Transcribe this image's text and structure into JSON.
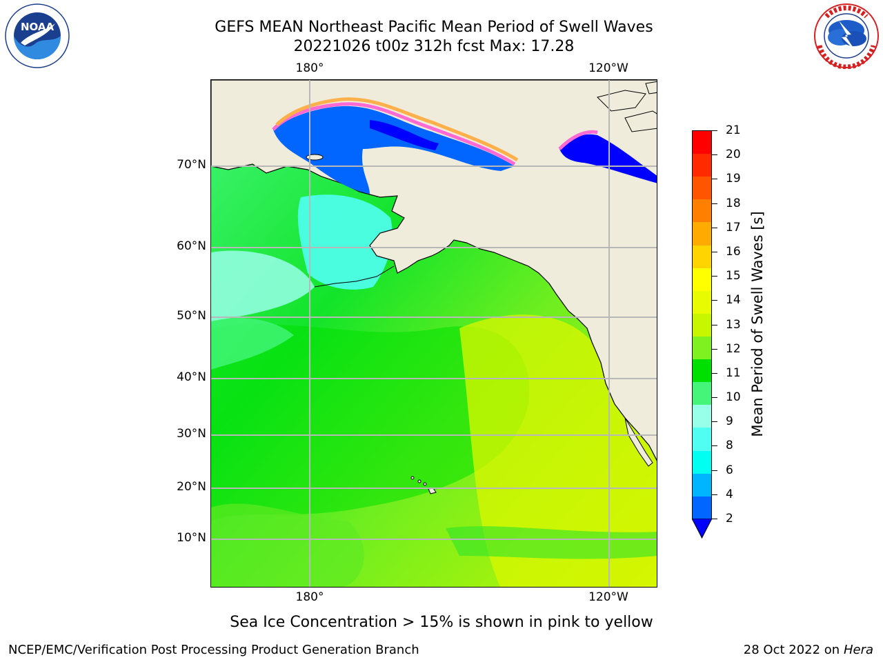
{
  "title": {
    "line1": "GEFS MEAN Northeast Pacific Mean Period of Swell Waves",
    "line2": "20221026 t00z 312h fcst   Max: 17.28"
  },
  "logos": {
    "left": {
      "name": "noaa-logo",
      "text": "NOAA",
      "ring_text": "NATIONAL OCEANIC AND ATMOSPHERIC ADMINISTRATION · U.S. DEPARTMENT OF COMMERCE"
    },
    "right": {
      "name": "nws-logo",
      "ring_text": "NATIONAL WEATHER SERVICE"
    }
  },
  "map": {
    "lon_labels": [
      "180°",
      "120°W"
    ],
    "lat_labels": [
      "70°N",
      "60°N",
      "50°N",
      "40°N",
      "30°N",
      "20°N",
      "10°N"
    ],
    "land_color": "#efecdc",
    "grid_color": "#b8b8b8"
  },
  "colorbar": {
    "label": "Mean Period of Swell Waves [s]",
    "ticks": [
      "21",
      "20",
      "19",
      "18",
      "17",
      "16",
      "15",
      "14",
      "13",
      "12",
      "11",
      "10",
      "9",
      "8",
      "6",
      "4",
      "2"
    ],
    "colors_top_to_bottom": [
      "#ff0000",
      "#ff2a00",
      "#ff5500",
      "#ff7f00",
      "#ffaa00",
      "#ffd400",
      "#ffff00",
      "#e9fb00",
      "#c8f500",
      "#7ff020",
      "#00e000",
      "#44f57a",
      "#98ffe9",
      "#50fff2",
      "#00fff0",
      "#00b5ff",
      "#0066ff"
    ],
    "extend_min_color": "#0000ff"
  },
  "note": "Sea Ice Concentration > 15% is shown in pink to yellow",
  "footer": {
    "left": "NCEP/EMC/Verification Post Processing Product Generation Branch",
    "date": "28 Oct 2022 on ",
    "machine": "Hera"
  }
}
